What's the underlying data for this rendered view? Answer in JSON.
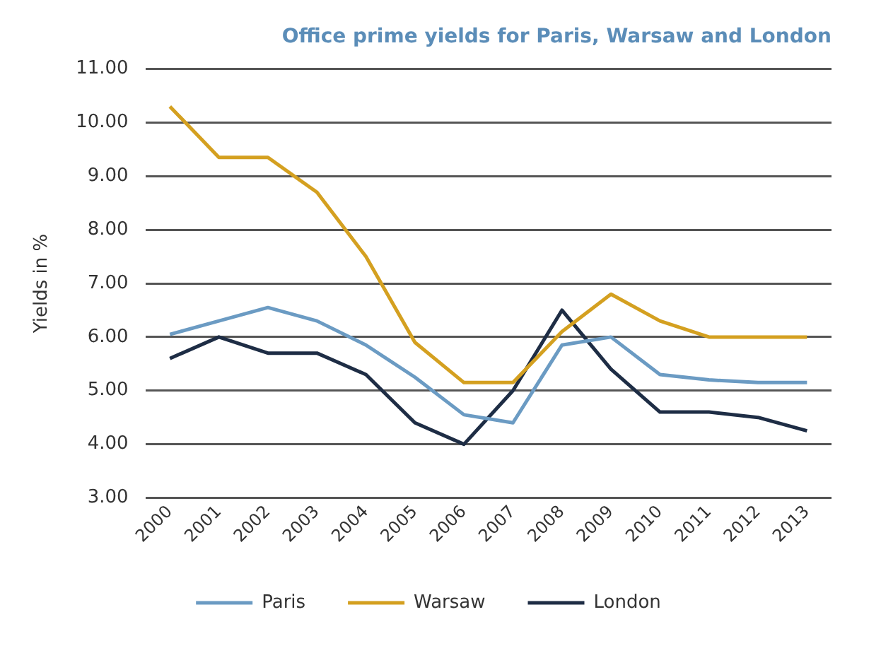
{
  "chart_data": {
    "type": "line",
    "title": "Office prime yields for Paris, Warsaw and London",
    "ylabel": "Yields in %",
    "categories": [
      "2000",
      "2001",
      "2002",
      "2003",
      "2004",
      "2005",
      "2006",
      "2007",
      "2008",
      "2009",
      "2010",
      "2011",
      "2012",
      "2013"
    ],
    "series": [
      {
        "name": "Paris",
        "color": "#6b9bc3",
        "values": [
          6.05,
          6.3,
          6.55,
          6.3,
          5.85,
          5.25,
          4.55,
          4.4,
          5.85,
          6.0,
          5.3,
          5.2,
          5.15,
          5.15
        ]
      },
      {
        "name": "Warsaw",
        "color": "#d4a020",
        "values": [
          10.3,
          9.35,
          9.35,
          8.7,
          7.5,
          5.9,
          5.15,
          5.15,
          6.1,
          6.8,
          6.3,
          6.0,
          6.0,
          6.0
        ]
      },
      {
        "name": "London",
        "color": "#1e2d45",
        "values": [
          5.6,
          6.0,
          5.7,
          5.7,
          5.3,
          4.4,
          4.0,
          5.0,
          6.5,
          5.4,
          4.6,
          4.6,
          4.5,
          4.25
        ]
      }
    ],
    "ylim": [
      3,
      11
    ],
    "yticks": [
      {
        "value": 3,
        "label": "3.00"
      },
      {
        "value": 4,
        "label": "4.00"
      },
      {
        "value": 5,
        "label": "5.00"
      },
      {
        "value": 6,
        "label": "6.00"
      },
      {
        "value": 7,
        "label": "7.00"
      },
      {
        "value": 8,
        "label": "8.00"
      },
      {
        "value": 9,
        "label": "9.00"
      },
      {
        "value": 10,
        "label": "10.00"
      },
      {
        "value": 11,
        "label": "11.00"
      }
    ],
    "grid": "y",
    "legend": "bottom",
    "marker": "none",
    "line_style": "solid"
  }
}
